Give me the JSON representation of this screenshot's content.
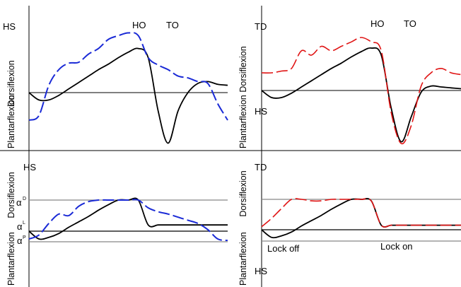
{
  "chart_data": [
    {
      "type": "line",
      "panel": "top-left",
      "y_axis_labels": [
        "Dorsiflexion",
        "Plantarflexion"
      ],
      "annotations": [
        "HS",
        "HO",
        "TO"
      ],
      "x": [
        0,
        5,
        10,
        15,
        20,
        25,
        30,
        35,
        40,
        45,
        50,
        55,
        60,
        65,
        70,
        75,
        80,
        85,
        90,
        95,
        100
      ],
      "series": [
        {
          "color": "#000000",
          "dash": "solid",
          "values": [
            0,
            -8,
            -8,
            -3,
            4,
            11,
            18,
            25,
            31,
            38,
            44,
            48,
            38,
            -20,
            -55,
            -20,
            0,
            10,
            12,
            9,
            8
          ]
        },
        {
          "color": "#1a2ad6",
          "dash": "dashed",
          "values": [
            -30,
            -25,
            8,
            25,
            32,
            33,
            42,
            48,
            58,
            62,
            65,
            62,
            38,
            30,
            25,
            18,
            16,
            12,
            10,
            -12,
            -30
          ]
        }
      ],
      "reference_lines": [
        0
      ]
    },
    {
      "type": "line",
      "panel": "top-right",
      "y_axis_labels": [
        "Dorsiflexion",
        "Plantarflexion"
      ],
      "annotations": [
        "TD",
        "HS",
        "HO",
        "TO"
      ],
      "x": [
        0,
        5,
        10,
        15,
        20,
        25,
        30,
        35,
        40,
        45,
        50,
        55,
        60,
        65,
        70,
        75,
        80,
        85,
        90,
        95,
        100
      ],
      "series": [
        {
          "color": "#000000",
          "dash": "solid",
          "values": [
            0,
            -8,
            -8,
            -3,
            4,
            11,
            18,
            25,
            31,
            38,
            44,
            48,
            40,
            -20,
            -58,
            -30,
            -2,
            5,
            4,
            3,
            2
          ]
        },
        {
          "color": "#e01414",
          "dash": "dashed",
          "values": [
            20,
            20,
            22,
            25,
            45,
            40,
            50,
            45,
            50,
            55,
            60,
            55,
            45,
            -25,
            -60,
            -40,
            5,
            20,
            25,
            20,
            18
          ]
        }
      ],
      "reference_lines": [
        0
      ]
    },
    {
      "type": "line",
      "panel": "bottom-left",
      "y_axis_labels": [
        "Dorsiflexion",
        "Plantarflexion"
      ],
      "annotations": [
        "HS"
      ],
      "reference_line_labels": [
        "α",
        "D",
        "α",
        "L",
        "α",
        "P"
      ],
      "x": [
        0,
        5,
        10,
        15,
        20,
        25,
        30,
        35,
        40,
        45,
        50,
        55,
        60,
        65,
        70,
        75,
        80,
        85,
        90,
        95,
        100
      ],
      "series": [
        {
          "color": "#000000",
          "dash": "solid",
          "values": [
            0,
            -10,
            -8,
            -3,
            5,
            12,
            19,
            27,
            34,
            40,
            40,
            40,
            8,
            8,
            8,
            8,
            8,
            8,
            8,
            8,
            8
          ]
        },
        {
          "color": "#1a2ad6",
          "dash": "dashed",
          "values": [
            -10,
            -5,
            10,
            22,
            20,
            32,
            38,
            40,
            40,
            40,
            40,
            40,
            30,
            25,
            22,
            18,
            14,
            10,
            2,
            -10,
            -12
          ]
        }
      ],
      "reference_lines": [
        -12,
        0,
        40
      ]
    },
    {
      "type": "line",
      "panel": "bottom-right",
      "y_axis_labels": [
        "Dorsiflexion",
        "Plantarflexion"
      ],
      "annotations": [
        "TD",
        "HS",
        "Lock off",
        "Lock on"
      ],
      "x": [
        0,
        5,
        10,
        15,
        20,
        25,
        30,
        35,
        40,
        45,
        50,
        55,
        60,
        65,
        70,
        75,
        80,
        85,
        90,
        95,
        100
      ],
      "series": [
        {
          "color": "#000000",
          "dash": "solid",
          "values": [
            0,
            -10,
            -8,
            -3,
            5,
            12,
            19,
            27,
            34,
            40,
            40,
            38,
            6,
            6,
            6,
            6,
            6,
            6,
            6,
            6,
            6
          ]
        },
        {
          "color": "#e01414",
          "dash": "dashed",
          "values": [
            4,
            15,
            28,
            40,
            40,
            38,
            38,
            40,
            40,
            40,
            40,
            38,
            6,
            6,
            6,
            6,
            6,
            6,
            6,
            6,
            6
          ]
        }
      ],
      "reference_lines": [
        -12,
        0,
        40
      ]
    }
  ]
}
